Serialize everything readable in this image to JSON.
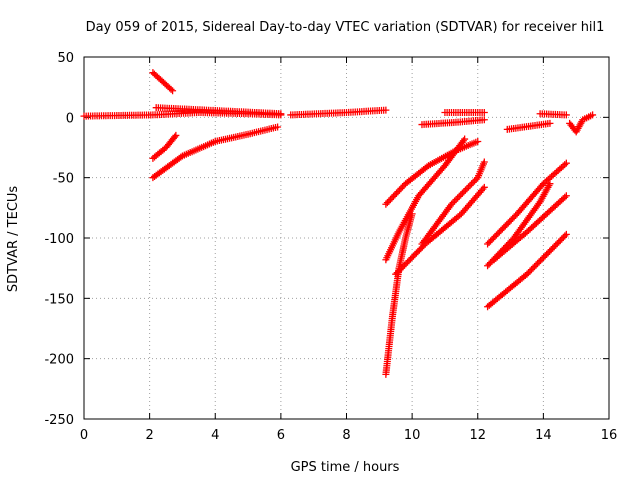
{
  "chart_data": {
    "type": "scatter",
    "title": "Day 059 of 2015, Sidereal Day-to-day VTEC variation (SDTVAR) for receiver hil1",
    "xlabel": "GPS time / hours",
    "ylabel": "SDTVAR / TECUs",
    "xlim": [
      0,
      16
    ],
    "ylim": [
      -250,
      50
    ],
    "xticks": [
      0,
      2,
      4,
      6,
      8,
      10,
      12,
      14,
      16
    ],
    "yticks": [
      -250,
      -200,
      -150,
      -100,
      -50,
      0,
      50
    ],
    "grid": true,
    "marker": "plus",
    "color": "#ff0000",
    "tracks": [
      {
        "points": [
          [
            0.0,
            1
          ],
          [
            1.0,
            1.5
          ],
          [
            2.1,
            2
          ],
          [
            3.5,
            4
          ],
          [
            5.0,
            3
          ],
          [
            6.0,
            2
          ]
        ]
      },
      {
        "points": [
          [
            2.1,
            37
          ],
          [
            2.7,
            22
          ]
        ]
      },
      {
        "points": [
          [
            2.2,
            8
          ],
          [
            6.0,
            3
          ]
        ]
      },
      {
        "points": [
          [
            6.3,
            2
          ],
          [
            8.0,
            4
          ],
          [
            9.2,
            6
          ]
        ]
      },
      {
        "points": [
          [
            2.1,
            -34
          ],
          [
            2.5,
            -25
          ],
          [
            2.8,
            -15
          ]
        ]
      },
      {
        "points": [
          [
            2.1,
            -50
          ],
          [
            2.6,
            -40
          ],
          [
            3.0,
            -32
          ],
          [
            4.0,
            -20
          ],
          [
            5.0,
            -14
          ],
          [
            5.9,
            -8
          ]
        ]
      },
      {
        "points": [
          [
            9.2,
            -213
          ],
          [
            9.4,
            -165
          ],
          [
            9.6,
            -125
          ],
          [
            9.8,
            -100
          ],
          [
            10.0,
            -80
          ]
        ]
      },
      {
        "points": [
          [
            9.2,
            -118
          ],
          [
            9.6,
            -95
          ],
          [
            10.2,
            -65
          ],
          [
            11.0,
            -40
          ],
          [
            11.6,
            -18
          ]
        ]
      },
      {
        "points": [
          [
            9.2,
            -72
          ],
          [
            9.8,
            -55
          ],
          [
            10.5,
            -40
          ],
          [
            11.3,
            -28
          ],
          [
            12.0,
            -20
          ]
        ]
      },
      {
        "points": [
          [
            9.5,
            -130
          ],
          [
            10.4,
            -105
          ],
          [
            11.5,
            -80
          ],
          [
            12.2,
            -58
          ]
        ]
      },
      {
        "points": [
          [
            10.3,
            -105
          ],
          [
            11.2,
            -72
          ],
          [
            12.0,
            -50
          ],
          [
            12.2,
            -37
          ]
        ]
      },
      {
        "points": [
          [
            10.3,
            -6
          ],
          [
            11.4,
            -4
          ],
          [
            12.2,
            -2
          ]
        ]
      },
      {
        "points": [
          [
            11.0,
            4
          ],
          [
            12.2,
            4
          ]
        ]
      },
      {
        "points": [
          [
            12.3,
            -105
          ],
          [
            13.2,
            -80
          ],
          [
            14.0,
            -55
          ],
          [
            14.7,
            -38
          ]
        ]
      },
      {
        "points": [
          [
            12.3,
            -123
          ],
          [
            13.1,
            -100
          ],
          [
            13.9,
            -70
          ],
          [
            14.2,
            -55
          ]
        ]
      },
      {
        "points": [
          [
            12.5,
            -118
          ],
          [
            13.5,
            -95
          ],
          [
            14.7,
            -65
          ]
        ]
      },
      {
        "points": [
          [
            12.3,
            -157
          ],
          [
            13.5,
            -130
          ],
          [
            14.7,
            -97
          ]
        ]
      },
      {
        "points": [
          [
            12.9,
            -10
          ],
          [
            14.2,
            -5
          ]
        ]
      },
      {
        "points": [
          [
            13.9,
            3
          ],
          [
            14.7,
            2
          ]
        ]
      },
      {
        "points": [
          [
            14.8,
            -5
          ],
          [
            15.0,
            -12
          ],
          [
            15.2,
            -2
          ],
          [
            15.5,
            2
          ]
        ]
      }
    ]
  }
}
